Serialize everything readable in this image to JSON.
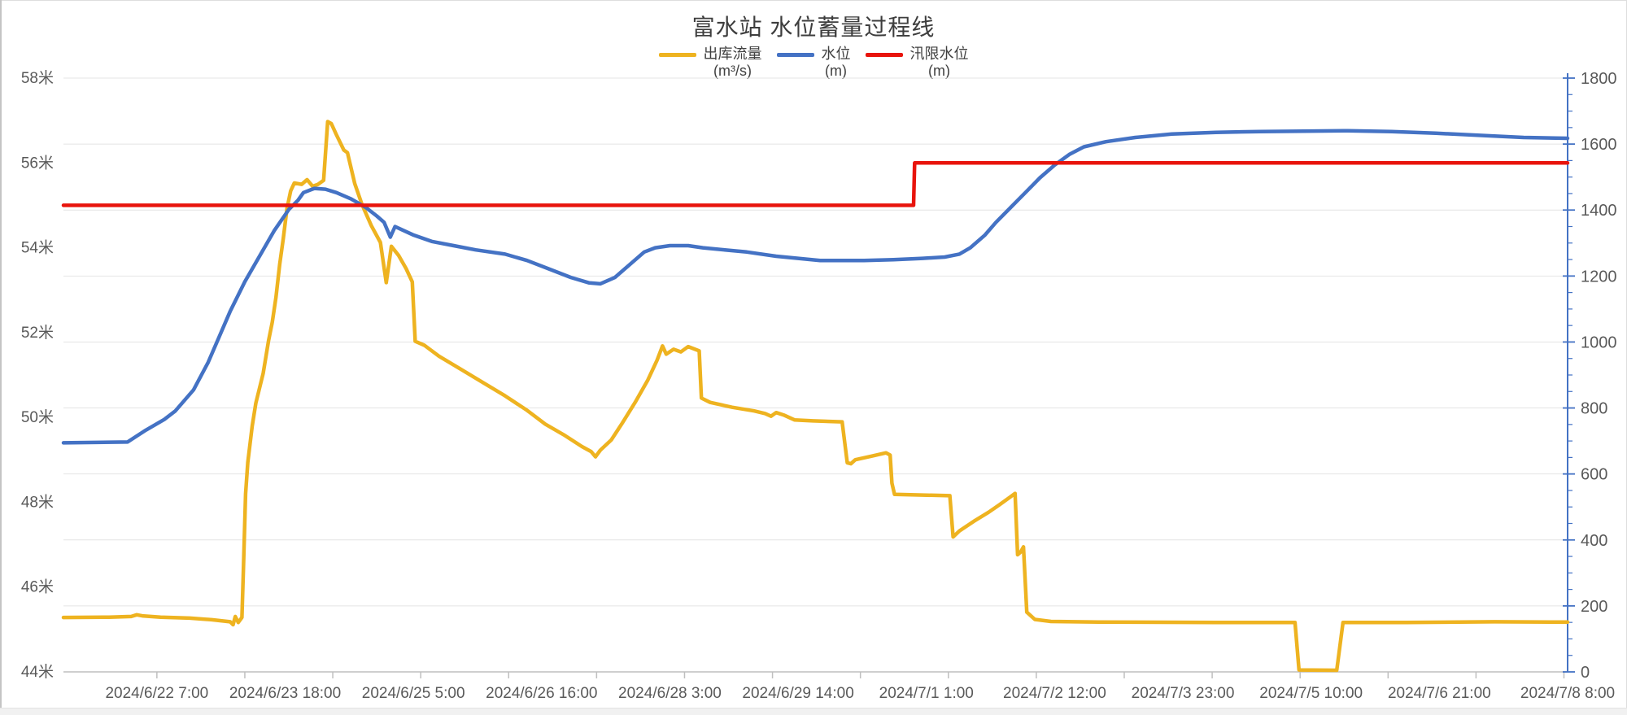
{
  "title": "富水站 水位蓄量过程线",
  "legend": [
    {
      "name": "出库流量",
      "unit": "(m³/s)",
      "color": "#EEB320"
    },
    {
      "name": "水位",
      "unit": "(m)",
      "color": "#4472C4"
    },
    {
      "name": "汛限水位",
      "unit": "(m)",
      "color": "#E8140C"
    }
  ],
  "colors": {
    "grid": "#e4e4e4",
    "axis": "#bfbfbf",
    "right_axis": "#4472C4",
    "tick": "#bfbfbf",
    "text": "#595959",
    "title_text": "#3d3d3d"
  },
  "chart_data": {
    "type": "line",
    "title": "富水站 水位蓄量过程线",
    "grid": "horizontal-only",
    "legend_position": "top-center",
    "x_axis": {
      "unit": "datetime",
      "domain_hours": [
        5.5,
        416
      ],
      "first_label_hour": 31,
      "label_interval_hours": 35,
      "tick_interval_hours": 24,
      "labels": [
        "2024/6/22 7:00",
        "2024/6/23 18:00",
        "2024/6/25 5:00",
        "2024/6/26 16:00",
        "2024/6/28 3:00",
        "2024/6/29 14:00",
        "2024/7/1 1:00",
        "2024/7/2 12:00",
        "2024/7/3 23:00",
        "2024/7/5 10:00",
        "2024/7/6 21:00",
        "2024/7/8 8:00"
      ]
    },
    "y_left": {
      "min": 44,
      "max": 58,
      "label_step": 2,
      "suffix": "米"
    },
    "y_right": {
      "min": 0,
      "max": 1800,
      "label_step": 200,
      "minor_tick_step": 50
    },
    "series": [
      {
        "id": "outflow-line",
        "name": "出库流量",
        "unit": "(m³/s)",
        "axis": "right",
        "color": "#EEB320",
        "points": [
          [
            5.5,
            165
          ],
          [
            18,
            166
          ],
          [
            24,
            168
          ],
          [
            25.5,
            173
          ],
          [
            27,
            170
          ],
          [
            32,
            166
          ],
          [
            40,
            163
          ],
          [
            46,
            158
          ],
          [
            51,
            152
          ],
          [
            51.8,
            143
          ],
          [
            52.4,
            168
          ],
          [
            53.2,
            150
          ],
          [
            54.2,
            165
          ],
          [
            54.6,
            310
          ],
          [
            55.2,
            540
          ],
          [
            55.8,
            635
          ],
          [
            57,
            745
          ],
          [
            58,
            815
          ],
          [
            60,
            905
          ],
          [
            61.5,
            1005
          ],
          [
            62.5,
            1060
          ],
          [
            63.5,
            1135
          ],
          [
            64.5,
            1235
          ],
          [
            65.5,
            1315
          ],
          [
            66.5,
            1405
          ],
          [
            67.5,
            1458
          ],
          [
            68.5,
            1482
          ],
          [
            70.5,
            1478
          ],
          [
            72,
            1492
          ],
          [
            73.5,
            1472
          ],
          [
            75,
            1478
          ],
          [
            76.5,
            1490
          ],
          [
            77.6,
            1668
          ],
          [
            78.6,
            1662
          ],
          [
            80,
            1628
          ],
          [
            82,
            1582
          ],
          [
            83,
            1574
          ],
          [
            85,
            1480
          ],
          [
            87,
            1416
          ],
          [
            89.5,
            1353
          ],
          [
            92,
            1302
          ],
          [
            93.6,
            1180
          ],
          [
            95,
            1290
          ],
          [
            97,
            1262
          ],
          [
            99,
            1223
          ],
          [
            100.7,
            1182
          ],
          [
            101.5,
            1002
          ],
          [
            104,
            990
          ],
          [
            108,
            957
          ],
          [
            114,
            917
          ],
          [
            120,
            877
          ],
          [
            126,
            837
          ],
          [
            132,
            793
          ],
          [
            137,
            751
          ],
          [
            142,
            719
          ],
          [
            147,
            683
          ],
          [
            149.5,
            668
          ],
          [
            150.7,
            652
          ],
          [
            152,
            672
          ],
          [
            155,
            703
          ],
          [
            158,
            754
          ],
          [
            161.5,
            817
          ],
          [
            165,
            885
          ],
          [
            167.5,
            945
          ],
          [
            169,
            988
          ],
          [
            170,
            963
          ],
          [
            172,
            978
          ],
          [
            174,
            970
          ],
          [
            176,
            986
          ],
          [
            179,
            973
          ],
          [
            179.6,
            830
          ],
          [
            182,
            817
          ],
          [
            188,
            802
          ],
          [
            194,
            791
          ],
          [
            197,
            783
          ],
          [
            198.6,
            775
          ],
          [
            200,
            786
          ],
          [
            202,
            779
          ],
          [
            205,
            764
          ],
          [
            210,
            761
          ],
          [
            218,
            758
          ],
          [
            219.4,
            634
          ],
          [
            220.4,
            631
          ],
          [
            221.6,
            643
          ],
          [
            226,
            654
          ],
          [
            230,
            664
          ],
          [
            231.1,
            657
          ],
          [
            231.6,
            572
          ],
          [
            232.3,
            538
          ],
          [
            240,
            536
          ],
          [
            247.4,
            534
          ],
          [
            248.3,
            409
          ],
          [
            250,
            427
          ],
          [
            254,
            457
          ],
          [
            258,
            484
          ],
          [
            261,
            507
          ],
          [
            264,
            531
          ],
          [
            265.2,
            541
          ],
          [
            265.9,
            355
          ],
          [
            266.7,
            363
          ],
          [
            267.5,
            379
          ],
          [
            268.4,
            181
          ],
          [
            270.6,
            159
          ],
          [
            275,
            153
          ],
          [
            288,
            151
          ],
          [
            320,
            150
          ],
          [
            341.6,
            150
          ],
          [
            342.7,
            6
          ],
          [
            353,
            5
          ],
          [
            354.7,
            150
          ],
          [
            372,
            150
          ],
          [
            396,
            152
          ],
          [
            416,
            151
          ]
        ]
      },
      {
        "id": "water-level-line",
        "name": "水位",
        "unit": "(m)",
        "axis": "left",
        "color": "#4472C4",
        "points": [
          [
            5.5,
            49.4
          ],
          [
            23,
            49.42
          ],
          [
            28,
            49.7
          ],
          [
            33,
            49.95
          ],
          [
            36,
            50.15
          ],
          [
            41,
            50.65
          ],
          [
            45,
            51.3
          ],
          [
            48,
            51.9
          ],
          [
            51,
            52.5
          ],
          [
            55,
            53.2
          ],
          [
            59,
            53.8
          ],
          [
            63,
            54.4
          ],
          [
            67,
            54.9
          ],
          [
            69.5,
            55.12
          ],
          [
            71,
            55.3
          ],
          [
            74,
            55.4
          ],
          [
            77,
            55.38
          ],
          [
            80,
            55.3
          ],
          [
            84,
            55.15
          ],
          [
            88,
            54.95
          ],
          [
            91,
            54.75
          ],
          [
            93,
            54.6
          ],
          [
            94.7,
            54.25
          ],
          [
            96,
            54.5
          ],
          [
            98,
            54.42
          ],
          [
            101,
            54.3
          ],
          [
            106,
            54.15
          ],
          [
            112,
            54.05
          ],
          [
            118,
            53.95
          ],
          [
            126,
            53.85
          ],
          [
            132,
            53.7
          ],
          [
            138,
            53.5
          ],
          [
            144,
            53.3
          ],
          [
            149,
            53.17
          ],
          [
            152,
            53.15
          ],
          [
            156,
            53.3
          ],
          [
            160,
            53.6
          ],
          [
            164,
            53.9
          ],
          [
            167,
            54.0
          ],
          [
            171,
            54.05
          ],
          [
            176,
            54.05
          ],
          [
            180,
            54.0
          ],
          [
            186,
            53.95
          ],
          [
            192,
            53.9
          ],
          [
            200,
            53.8
          ],
          [
            206,
            53.75
          ],
          [
            212,
            53.7
          ],
          [
            224,
            53.7
          ],
          [
            232,
            53.72
          ],
          [
            240,
            53.75
          ],
          [
            246,
            53.78
          ],
          [
            250,
            53.85
          ],
          [
            253,
            54.0
          ],
          [
            257,
            54.3
          ],
          [
            260,
            54.6
          ],
          [
            264,
            54.95
          ],
          [
            268,
            55.3
          ],
          [
            272,
            55.65
          ],
          [
            276,
            55.95
          ],
          [
            280,
            56.2
          ],
          [
            284,
            56.38
          ],
          [
            290,
            56.5
          ],
          [
            298,
            56.6
          ],
          [
            308,
            56.68
          ],
          [
            320,
            56.72
          ],
          [
            332,
            56.74
          ],
          [
            344,
            56.75
          ],
          [
            356,
            56.76
          ],
          [
            368,
            56.74
          ],
          [
            380,
            56.7
          ],
          [
            392,
            56.65
          ],
          [
            404,
            56.6
          ],
          [
            416,
            56.58
          ]
        ]
      },
      {
        "id": "flood-limit-line",
        "name": "汛限水位",
        "unit": "(m)",
        "axis": "left",
        "color": "#E8140C",
        "points": [
          [
            5.5,
            55
          ],
          [
            237.5,
            55
          ],
          [
            237.8,
            56
          ],
          [
            416,
            56
          ]
        ]
      }
    ]
  }
}
